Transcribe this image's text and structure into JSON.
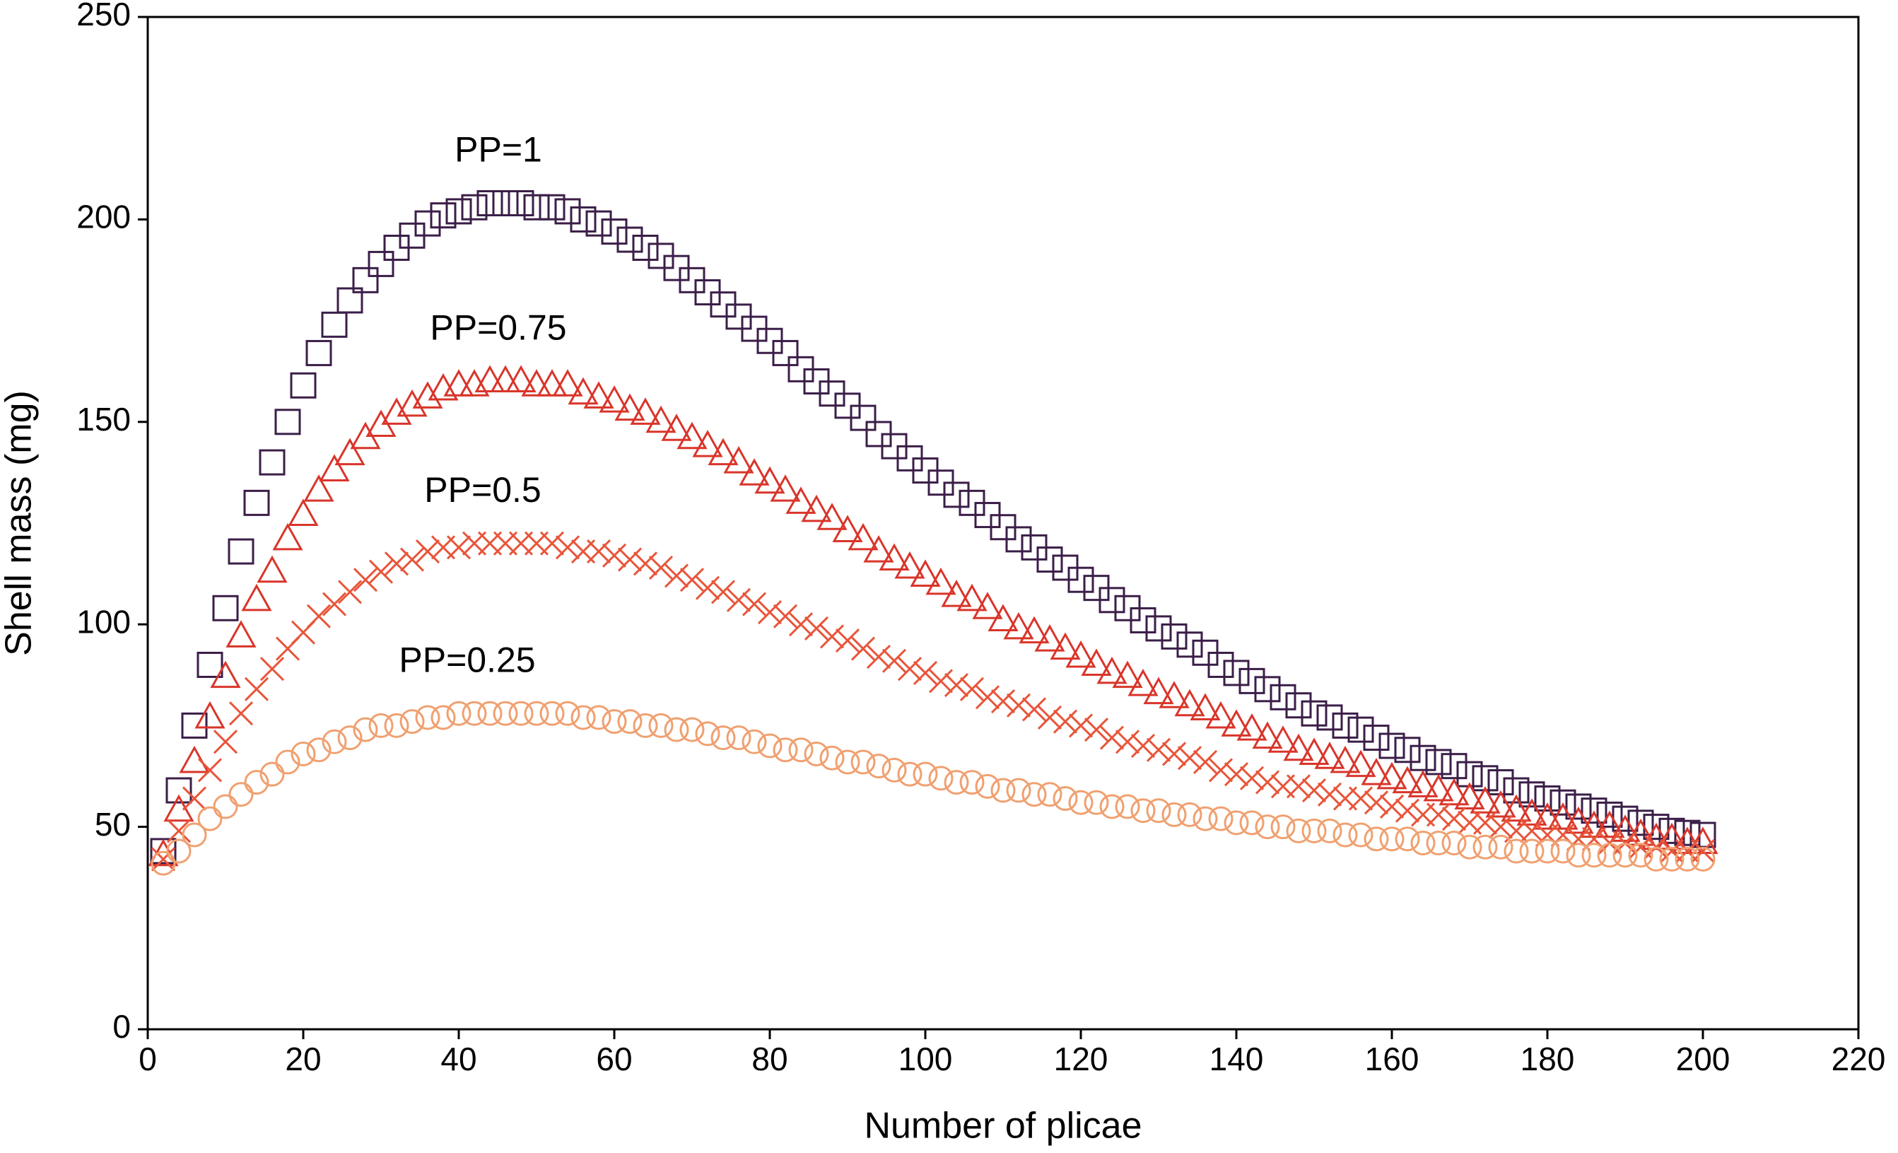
{
  "chart_data": {
    "type": "scatter",
    "x_label": "Number of plicae",
    "y_label": "Shell mass (mg)",
    "xlim": [
      0,
      220
    ],
    "xticks": [
      0,
      20,
      40,
      60,
      80,
      100,
      120,
      140,
      160,
      180,
      200,
      220
    ],
    "ylim": [
      0,
      250
    ],
    "yticks": [
      0,
      50,
      100,
      150,
      200,
      250
    ],
    "x": [
      2,
      4,
      6,
      8,
      10,
      12,
      14,
      16,
      18,
      20,
      22,
      24,
      26,
      28,
      30,
      32,
      34,
      36,
      38,
      40,
      42,
      44,
      46,
      48,
      50,
      52,
      54,
      56,
      58,
      60,
      62,
      64,
      66,
      68,
      70,
      72,
      74,
      76,
      78,
      80,
      82,
      84,
      86,
      88,
      90,
      92,
      94,
      96,
      98,
      100,
      102,
      104,
      106,
      108,
      110,
      112,
      114,
      116,
      118,
      120,
      122,
      124,
      126,
      128,
      130,
      132,
      134,
      136,
      138,
      140,
      142,
      144,
      146,
      148,
      150,
      152,
      154,
      156,
      158,
      160,
      162,
      164,
      166,
      168,
      170,
      172,
      174,
      176,
      178,
      180,
      182,
      184,
      186,
      188,
      190,
      192,
      194,
      196,
      198,
      200
    ],
    "series": [
      {
        "name": "PP=1",
        "color": "#3b1e48",
        "marker": "square",
        "values": [
          44,
          59,
          75,
          90,
          104,
          118,
          130,
          140,
          150,
          159,
          167,
          174,
          180,
          185,
          189,
          193,
          196,
          199,
          201,
          202,
          203,
          204,
          204,
          204,
          203,
          203,
          202,
          200,
          199,
          197,
          195,
          193,
          191,
          188,
          185,
          182,
          179,
          176,
          173,
          170,
          167,
          163,
          160,
          157,
          154,
          151,
          147,
          144,
          141,
          138,
          135,
          132,
          130,
          127,
          124,
          121,
          119,
          116,
          114,
          111,
          109,
          106,
          104,
          101,
          99,
          97,
          95,
          93,
          90,
          88,
          86,
          84,
          82,
          80,
          78,
          77,
          75,
          74,
          72,
          70,
          69,
          67,
          66,
          65,
          63,
          62,
          61,
          59,
          58,
          57,
          56,
          55,
          54,
          53,
          52,
          51,
          50,
          49,
          48.5,
          48
        ]
      },
      {
        "name": "PP=0.75",
        "color": "#d9352a",
        "marker": "triangle",
        "values": [
          43,
          54,
          66,
          77,
          87,
          97,
          106,
          113,
          121,
          127,
          133,
          138,
          142,
          146,
          149,
          152,
          154,
          156,
          158,
          159,
          159,
          160,
          160,
          160,
          159,
          159,
          159,
          157,
          156,
          155,
          153,
          152,
          150,
          148,
          146,
          144,
          142,
          140,
          137,
          135,
          133,
          130,
          128,
          126,
          123,
          121,
          118,
          116,
          114,
          112,
          110,
          107,
          106,
          104,
          101,
          99,
          98,
          96,
          94,
          92,
          90,
          88,
          87,
          85,
          83,
          82,
          80,
          79,
          77,
          75,
          74,
          72,
          71,
          69,
          68,
          67,
          66,
          65,
          63,
          62,
          61,
          60,
          59,
          58,
          57,
          56,
          55,
          54,
          53,
          52,
          52,
          51,
          50,
          50,
          49,
          48,
          47,
          47,
          46,
          46
        ]
      },
      {
        "name": "PP=0.5",
        "color": "#e8553a",
        "marker": "x",
        "values": [
          42,
          49,
          57,
          64,
          71,
          78,
          84,
          89,
          94,
          98,
          102,
          105,
          108,
          111,
          113,
          115,
          116,
          118,
          119,
          119,
          120,
          120,
          120,
          120,
          120,
          120,
          119,
          118,
          118,
          117,
          116,
          115,
          114,
          112,
          111,
          109,
          108,
          106,
          105,
          103,
          102,
          100,
          99,
          97,
          96,
          94,
          92,
          91,
          89,
          88,
          86,
          85,
          84,
          82,
          81,
          80,
          79,
          77,
          76,
          75,
          74,
          72,
          71,
          70,
          69,
          68,
          67,
          66,
          64,
          63,
          62,
          61,
          60,
          60,
          59,
          58,
          57,
          57,
          56,
          55,
          54,
          53,
          53,
          52,
          51,
          51,
          50,
          49,
          49,
          48,
          48,
          47,
          47,
          46,
          46,
          45,
          45,
          44,
          44,
          44
        ]
      },
      {
        "name": "PP=0.25",
        "color": "#f0a070",
        "marker": "circle",
        "values": [
          41,
          44,
          48,
          52,
          55,
          58,
          61,
          63,
          66,
          68,
          69,
          71,
          72,
          74,
          75,
          75,
          76,
          77,
          77,
          78,
          78,
          78,
          78,
          78,
          78,
          78,
          78,
          77,
          77,
          76,
          76,
          75,
          75,
          74,
          74,
          73,
          72,
          72,
          71,
          70,
          69,
          69,
          68,
          67,
          66,
          66,
          65,
          64,
          63,
          63,
          62,
          61,
          61,
          60,
          59,
          59,
          58,
          58,
          57,
          56,
          56,
          55,
          55,
          54,
          54,
          53,
          53,
          52,
          52,
          51,
          51,
          50,
          50,
          49,
          49,
          49,
          48,
          48,
          47,
          47,
          47,
          46,
          46,
          46,
          45,
          45,
          45,
          44,
          44,
          44,
          44,
          43,
          43,
          43,
          43,
          43,
          42,
          42,
          42,
          42
        ]
      }
    ]
  }
}
